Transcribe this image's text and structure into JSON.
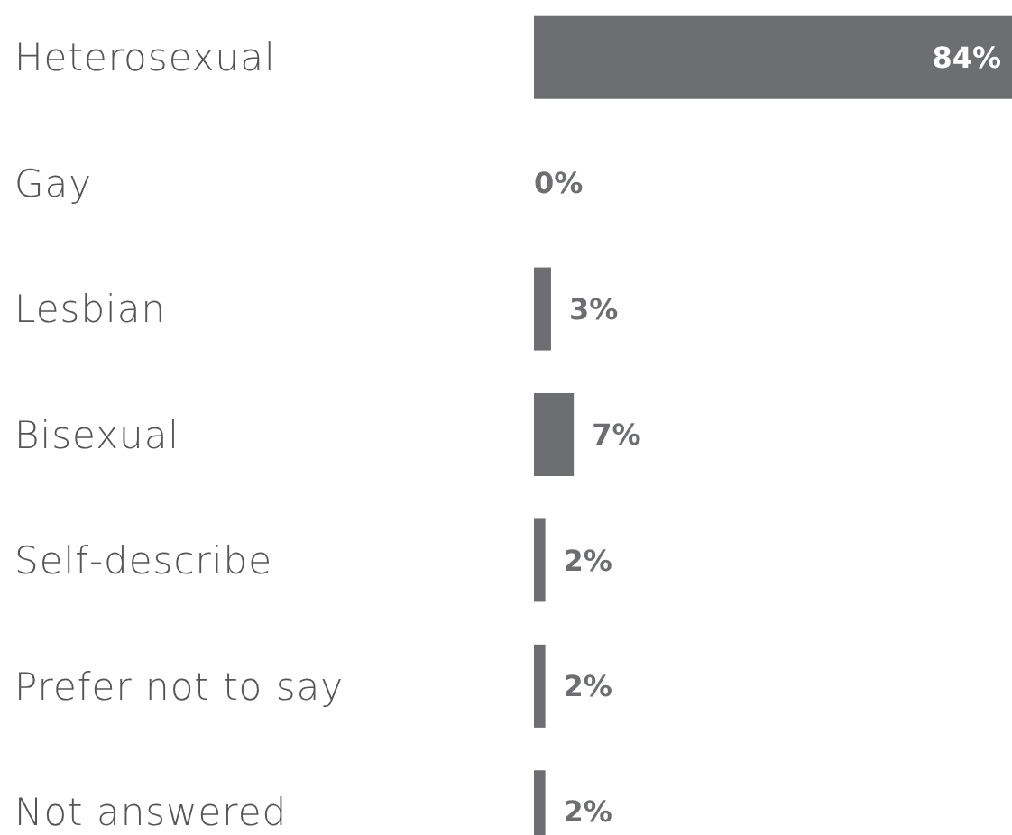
{
  "chart_data": {
    "type": "bar",
    "orientation": "horizontal",
    "categories": [
      "Heterosexual",
      "Gay",
      "Lesbian",
      "Bisexual",
      "Self-describe",
      "Prefer not to say",
      "Not answered"
    ],
    "values": [
      84,
      0,
      3,
      7,
      2,
      2,
      2
    ],
    "value_labels": [
      "84%",
      "0%",
      "3%",
      "7%",
      "2%",
      "2%",
      "2%"
    ],
    "color": "#6d6e71",
    "xlim": [
      0,
      84
    ]
  }
}
